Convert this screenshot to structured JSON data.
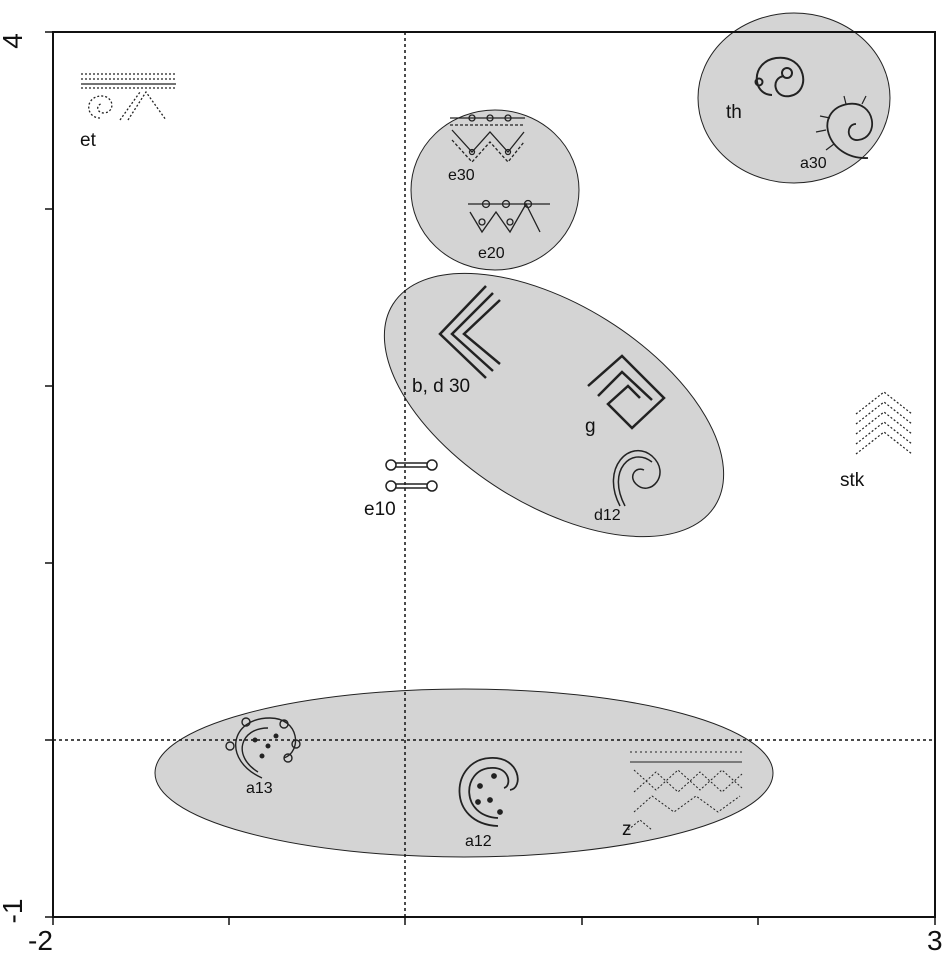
{
  "chart_data": {
    "type": "scatter",
    "title": "",
    "xlabel": "",
    "ylabel": "",
    "xlim": [
      -2,
      3
    ],
    "ylim": [
      -1,
      4
    ],
    "x_tick_labels": [
      "-2",
      "3"
    ],
    "y_tick_labels": [
      "-1",
      "4"
    ],
    "x_ticks": [
      -2,
      -1,
      0,
      1,
      2,
      3
    ],
    "y_ticks": [
      -1,
      0,
      1,
      2,
      3,
      4
    ],
    "reference_lines": {
      "x": 0,
      "y": 0
    },
    "points": [
      {
        "label": "et",
        "x": -1.8,
        "y": 3.75
      },
      {
        "label": "e30",
        "x": 0.3,
        "y": 3.35
      },
      {
        "label": "e20",
        "x": 0.5,
        "y": 2.95
      },
      {
        "label": "th",
        "x": 1.9,
        "y": 3.7
      },
      {
        "label": "a30",
        "x": 2.35,
        "y": 3.45
      },
      {
        "label": "b, d 30",
        "x": 0.3,
        "y": 2.35
      },
      {
        "label": "g",
        "x": 1.4,
        "y": 1.95
      },
      {
        "label": "d12",
        "x": 1.35,
        "y": 1.55
      },
      {
        "label": "stk",
        "x": 2.7,
        "y": 1.7
      },
      {
        "label": "e10",
        "x": 0.05,
        "y": 1.75
      },
      {
        "label": "a13",
        "x": -0.95,
        "y": -0.07
      },
      {
        "label": "a12",
        "x": 0.45,
        "y": -0.35
      },
      {
        "label": "z",
        "x": 1.35,
        "y": -0.2
      }
    ],
    "groups": [
      {
        "members": [
          "th",
          "a30"
        ],
        "fill": "#d4d4d4"
      },
      {
        "members": [
          "e30",
          "e20"
        ],
        "fill": "#d4d4d4"
      },
      {
        "members": [
          "b, d 30",
          "g",
          "d12"
        ],
        "fill": "#d4d4d4"
      },
      {
        "members": [
          "a13",
          "a12",
          "z"
        ],
        "fill": "#d4d4d4"
      }
    ],
    "colors": {
      "ellipse_fill": "#d4d4d4",
      "stroke": "#111111",
      "background": "#ffffff"
    }
  }
}
